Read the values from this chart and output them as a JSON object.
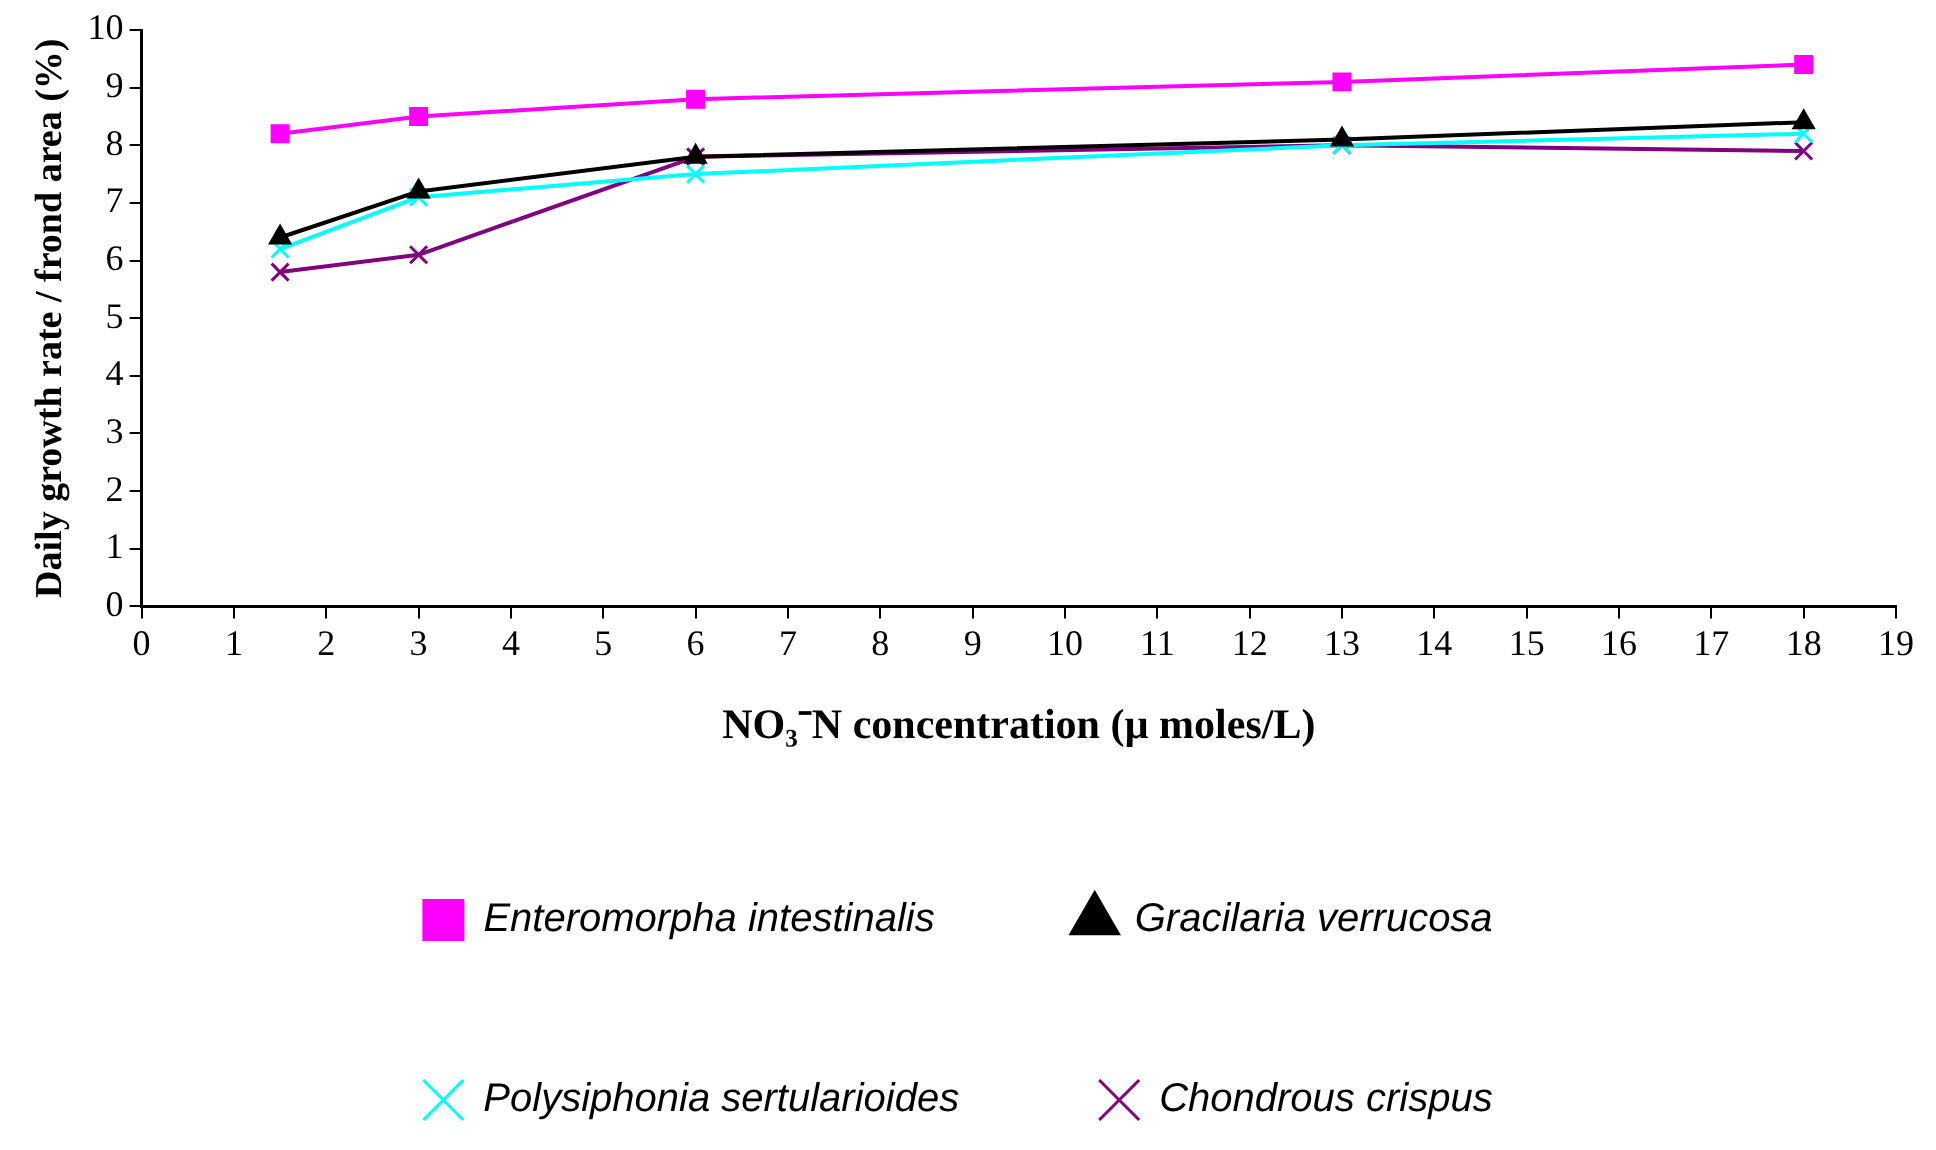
{
  "chart_data": {
    "type": "line",
    "xlabel": "NO₃⁻N concentration (µ moles/L)",
    "ylabel": "Daily growth rate / frond area (%)",
    "x": [
      1.5,
      3,
      6,
      13,
      18
    ],
    "xlim": [
      0,
      19
    ],
    "xticks": [
      0,
      1,
      2,
      3,
      4,
      5,
      6,
      7,
      8,
      9,
      10,
      11,
      12,
      13,
      14,
      15,
      16,
      17,
      18,
      19
    ],
    "ylim": [
      0,
      10
    ],
    "yticks": [
      0,
      1,
      2,
      3,
      4,
      5,
      6,
      7,
      8,
      9,
      10
    ],
    "grid": false,
    "legend": "bottom",
    "line_style": "solid",
    "series": [
      {
        "name": "Enteromorpha intestinalis",
        "color": "#ff00ff",
        "marker": "square",
        "values": [
          8.2,
          8.5,
          8.8,
          9.1,
          9.4
        ]
      },
      {
        "name": "Gracilaria verrucosa",
        "color": "#000000",
        "marker": "triangle",
        "values": [
          6.4,
          7.2,
          7.8,
          8.1,
          8.4
        ]
      },
      {
        "name": "Polysiphonia sertularioides",
        "color": "#00ffff",
        "marker": "cross",
        "values": [
          6.2,
          7.1,
          7.5,
          8.0,
          8.2
        ]
      },
      {
        "name": "Chondrous crispus",
        "color": "#800080",
        "marker": "cross",
        "values": [
          5.8,
          6.1,
          7.8,
          8.0,
          7.9
        ]
      }
    ]
  }
}
